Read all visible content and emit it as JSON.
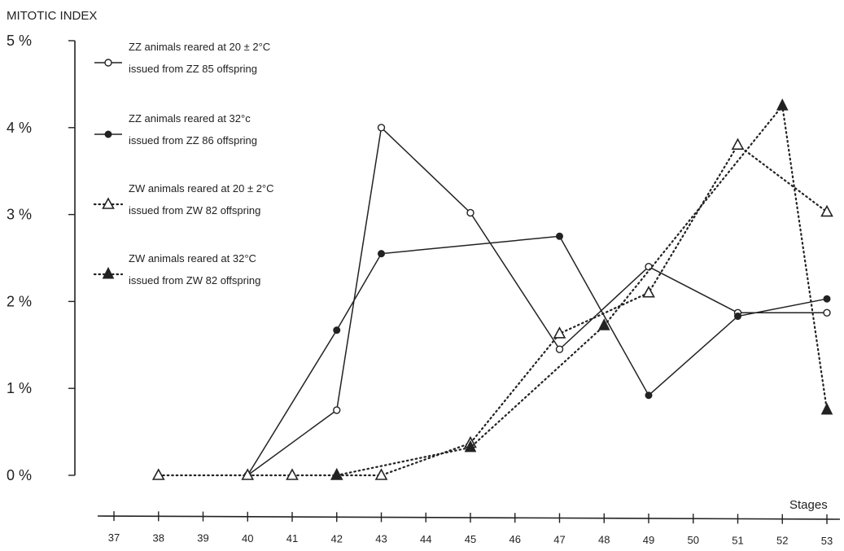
{
  "chart_data": {
    "type": "line",
    "ylabel": "MITOTIC INDEX",
    "xlabel": "Stages",
    "y_ticks": [
      "0 %",
      "1 %",
      "2 %",
      "3 %",
      "4 %",
      "5 %"
    ],
    "ylim": [
      0,
      5
    ],
    "x_ticks": [
      "37",
      "38",
      "39",
      "40",
      "41",
      "42",
      "43",
      "44",
      "45",
      "46",
      "47",
      "48",
      "49",
      "50",
      "51",
      "52",
      "53"
    ],
    "xlim": [
      37,
      53
    ],
    "grid": false,
    "legend_position": "top-left",
    "series": [
      {
        "name_line1": "ZZ animals reared at 20 ± 2°C",
        "name_line2": "issued from ZZ 85 offspring",
        "marker": "open-circle",
        "line": "solid",
        "points": [
          [
            40,
            0
          ],
          [
            42,
            0.75
          ],
          [
            43,
            4.0
          ],
          [
            45,
            3.02
          ],
          [
            47,
            1.45
          ],
          [
            49,
            2.4
          ],
          [
            51,
            1.87
          ],
          [
            53,
            1.87
          ]
        ]
      },
      {
        "name_line1": "ZZ animals reared at 32°c",
        "name_line2": "issued from ZZ 86 offspring",
        "marker": "filled-circle",
        "line": "solid",
        "points": [
          [
            40,
            0
          ],
          [
            42,
            1.67
          ],
          [
            43,
            2.55
          ],
          [
            47,
            2.75
          ],
          [
            49,
            0.92
          ],
          [
            51,
            1.83
          ],
          [
            53,
            2.03
          ]
        ]
      },
      {
        "name_line1": "ZW animals reared at 20 ± 2°C",
        "name_line2": "issued from ZW 82 offspring",
        "marker": "open-triangle",
        "line": "dotted",
        "points": [
          [
            38,
            0
          ],
          [
            40,
            0
          ],
          [
            41,
            0
          ],
          [
            42,
            0
          ],
          [
            43,
            0
          ],
          [
            45,
            0.37
          ],
          [
            47,
            1.63
          ],
          [
            49,
            2.1
          ],
          [
            51,
            3.8
          ],
          [
            53,
            3.03
          ]
        ]
      },
      {
        "name_line1": "ZW animals reared at 32°C",
        "name_line2": "issued from ZW 82 offspring",
        "marker": "filled-triangle",
        "line": "dotted",
        "points": [
          [
            42,
            0
          ],
          [
            45,
            0.32
          ],
          [
            48,
            1.72
          ],
          [
            52,
            4.25
          ],
          [
            53,
            0.75
          ]
        ]
      }
    ]
  }
}
